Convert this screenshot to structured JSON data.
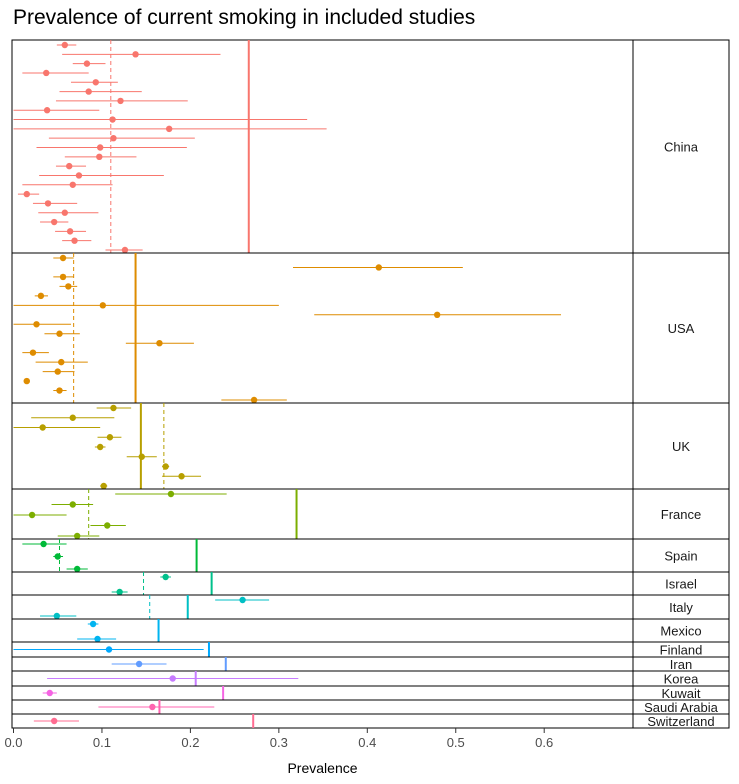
{
  "chart_data": {
    "type": "scatter",
    "title": "Prevalence of current smoking in included studies",
    "xlabel": "Prevalence",
    "ylabel": "",
    "xlim": [
      0.0,
      0.7
    ],
    "x_ticks": [
      "0.0",
      "0.1",
      "0.2",
      "0.3",
      "0.4",
      "0.5",
      "0.6"
    ],
    "grid": false,
    "legend": "none",
    "panels": [
      {
        "name": "China",
        "color": "#F8766D",
        "pooled": 0.266,
        "reference": 0.11,
        "studies": [
          {
            "x": 0.058,
            "lo": 0.049,
            "hi": 0.071
          },
          {
            "x": 0.138,
            "lo": 0.055,
            "hi": 0.234
          },
          {
            "x": 0.083,
            "lo": 0.067,
            "hi": 0.104
          },
          {
            "x": 0.037,
            "lo": 0.01,
            "hi": 0.085
          },
          {
            "x": 0.093,
            "lo": 0.065,
            "hi": 0.118
          },
          {
            "x": 0.085,
            "lo": 0.052,
            "hi": 0.145
          },
          {
            "x": 0.121,
            "lo": 0.048,
            "hi": 0.197
          },
          {
            "x": 0.038,
            "lo": 0.0,
            "hi": 0.097
          },
          {
            "x": 0.112,
            "lo": 0.0,
            "hi": 0.332
          },
          {
            "x": 0.176,
            "lo": 0.0,
            "hi": 0.354
          },
          {
            "x": 0.113,
            "lo": 0.04,
            "hi": 0.205
          },
          {
            "x": 0.098,
            "lo": 0.026,
            "hi": 0.196
          },
          {
            "x": 0.097,
            "lo": 0.058,
            "hi": 0.139
          },
          {
            "x": 0.063,
            "lo": 0.048,
            "hi": 0.082
          },
          {
            "x": 0.074,
            "lo": 0.029,
            "hi": 0.17
          },
          {
            "x": 0.067,
            "lo": 0.01,
            "hi": 0.112
          },
          {
            "x": 0.015,
            "lo": 0.005,
            "hi": 0.029
          },
          {
            "x": 0.039,
            "lo": 0.022,
            "hi": 0.072
          },
          {
            "x": 0.058,
            "lo": 0.028,
            "hi": 0.096
          },
          {
            "x": 0.046,
            "lo": 0.03,
            "hi": 0.062
          },
          {
            "x": 0.064,
            "lo": 0.047,
            "hi": 0.082
          },
          {
            "x": 0.069,
            "lo": 0.055,
            "hi": 0.088
          },
          {
            "x": 0.126,
            "lo": 0.104,
            "hi": 0.146
          }
        ]
      },
      {
        "name": "USA",
        "color": "#DE8C00",
        "pooled": 0.138,
        "reference": 0.068,
        "studies": [
          {
            "x": 0.056,
            "lo": 0.045,
            "hi": 0.068
          },
          {
            "x": 0.413,
            "lo": 0.316,
            "hi": 0.508
          },
          {
            "x": 0.056,
            "lo": 0.045,
            "hi": 0.068
          },
          {
            "x": 0.062,
            "lo": 0.052,
            "hi": 0.072
          },
          {
            "x": 0.031,
            "lo": 0.024,
            "hi": 0.039
          },
          {
            "x": 0.101,
            "lo": 0.0,
            "hi": 0.3
          },
          {
            "x": 0.479,
            "lo": 0.34,
            "hi": 0.619
          },
          {
            "x": 0.026,
            "lo": 0.0,
            "hi": 0.065
          },
          {
            "x": 0.052,
            "lo": 0.035,
            "hi": 0.075
          },
          {
            "x": 0.165,
            "lo": 0.127,
            "hi": 0.204
          },
          {
            "x": 0.022,
            "lo": 0.01,
            "hi": 0.04
          },
          {
            "x": 0.054,
            "lo": 0.025,
            "hi": 0.084
          },
          {
            "x": 0.05,
            "lo": 0.033,
            "hi": 0.069
          },
          {
            "x": 0.015,
            "lo": 0.013,
            "hi": 0.017
          },
          {
            "x": 0.052,
            "lo": 0.045,
            "hi": 0.06
          },
          {
            "x": 0.272,
            "lo": 0.235,
            "hi": 0.309
          }
        ]
      },
      {
        "name": "UK",
        "color": "#B79F00",
        "pooled": 0.144,
        "reference": 0.17,
        "studies": [
          {
            "x": 0.113,
            "lo": 0.094,
            "hi": 0.133
          },
          {
            "x": 0.067,
            "lo": 0.02,
            "hi": 0.114
          },
          {
            "x": 0.033,
            "lo": 0.0,
            "hi": 0.098
          },
          {
            "x": 0.109,
            "lo": 0.095,
            "hi": 0.122
          },
          {
            "x": 0.098,
            "lo": 0.092,
            "hi": 0.104
          },
          {
            "x": 0.145,
            "lo": 0.128,
            "hi": 0.162
          },
          {
            "x": 0.172,
            "lo": 0.168,
            "hi": 0.176
          },
          {
            "x": 0.19,
            "lo": 0.168,
            "hi": 0.212
          },
          {
            "x": 0.102,
            "lo": 0.098,
            "hi": 0.106
          }
        ]
      },
      {
        "name": "France",
        "color": "#7CAE00",
        "pooled": 0.32,
        "reference": 0.085,
        "studies": [
          {
            "x": 0.178,
            "lo": 0.115,
            "hi": 0.241
          },
          {
            "x": 0.067,
            "lo": 0.043,
            "hi": 0.09
          },
          {
            "x": 0.021,
            "lo": 0.0,
            "hi": 0.06
          },
          {
            "x": 0.106,
            "lo": 0.087,
            "hi": 0.127
          },
          {
            "x": 0.072,
            "lo": 0.05,
            "hi": 0.097
          }
        ]
      },
      {
        "name": "Spain",
        "color": "#00BA38",
        "pooled": 0.207,
        "reference": 0.052,
        "studies": [
          {
            "x": 0.034,
            "lo": 0.01,
            "hi": 0.06
          },
          {
            "x": 0.05,
            "lo": 0.045,
            "hi": 0.056
          },
          {
            "x": 0.072,
            "lo": 0.06,
            "hi": 0.084
          }
        ]
      },
      {
        "name": "Israel",
        "color": "#00C08B",
        "pooled": 0.224,
        "reference": 0.147,
        "studies": [
          {
            "x": 0.172,
            "lo": 0.166,
            "hi": 0.178
          },
          {
            "x": 0.12,
            "lo": 0.111,
            "hi": 0.129
          }
        ]
      },
      {
        "name": "Italy",
        "color": "#00BFC4",
        "pooled": 0.197,
        "reference": 0.154,
        "studies": [
          {
            "x": 0.259,
            "lo": 0.228,
            "hi": 0.289
          },
          {
            "x": 0.049,
            "lo": 0.03,
            "hi": 0.071
          }
        ]
      },
      {
        "name": "Mexico",
        "color": "#00B4F0",
        "pooled": 0.164,
        "reference": null,
        "studies": [
          {
            "x": 0.09,
            "lo": 0.084,
            "hi": 0.096
          },
          {
            "x": 0.095,
            "lo": 0.072,
            "hi": 0.116
          }
        ]
      },
      {
        "name": "Finland",
        "color": "#00A9FF",
        "pooled": 0.221,
        "reference": null,
        "studies": [
          {
            "x": 0.108,
            "lo": 0.0,
            "hi": 0.215
          }
        ]
      },
      {
        "name": "Iran",
        "color": "#619CFF",
        "pooled": 0.24,
        "reference": null,
        "studies": [
          {
            "x": 0.142,
            "lo": 0.111,
            "hi": 0.173
          }
        ]
      },
      {
        "name": "Korea",
        "color": "#C77CFF",
        "pooled": 0.206,
        "reference": null,
        "studies": [
          {
            "x": 0.18,
            "lo": 0.038,
            "hi": 0.322
          }
        ]
      },
      {
        "name": "Kuwait",
        "color": "#F564E3",
        "pooled": 0.237,
        "reference": null,
        "studies": [
          {
            "x": 0.041,
            "lo": 0.033,
            "hi": 0.049
          }
        ]
      },
      {
        "name": "Saudi Arabia",
        "color": "#FF64B0",
        "pooled": 0.165,
        "reference": null,
        "studies": [
          {
            "x": 0.157,
            "lo": 0.096,
            "hi": 0.227
          }
        ]
      },
      {
        "name": "Switzerland",
        "color": "#FF6C91",
        "pooled": 0.271,
        "reference": null,
        "studies": [
          {
            "x": 0.046,
            "lo": 0.023,
            "hi": 0.074
          }
        ]
      }
    ]
  }
}
